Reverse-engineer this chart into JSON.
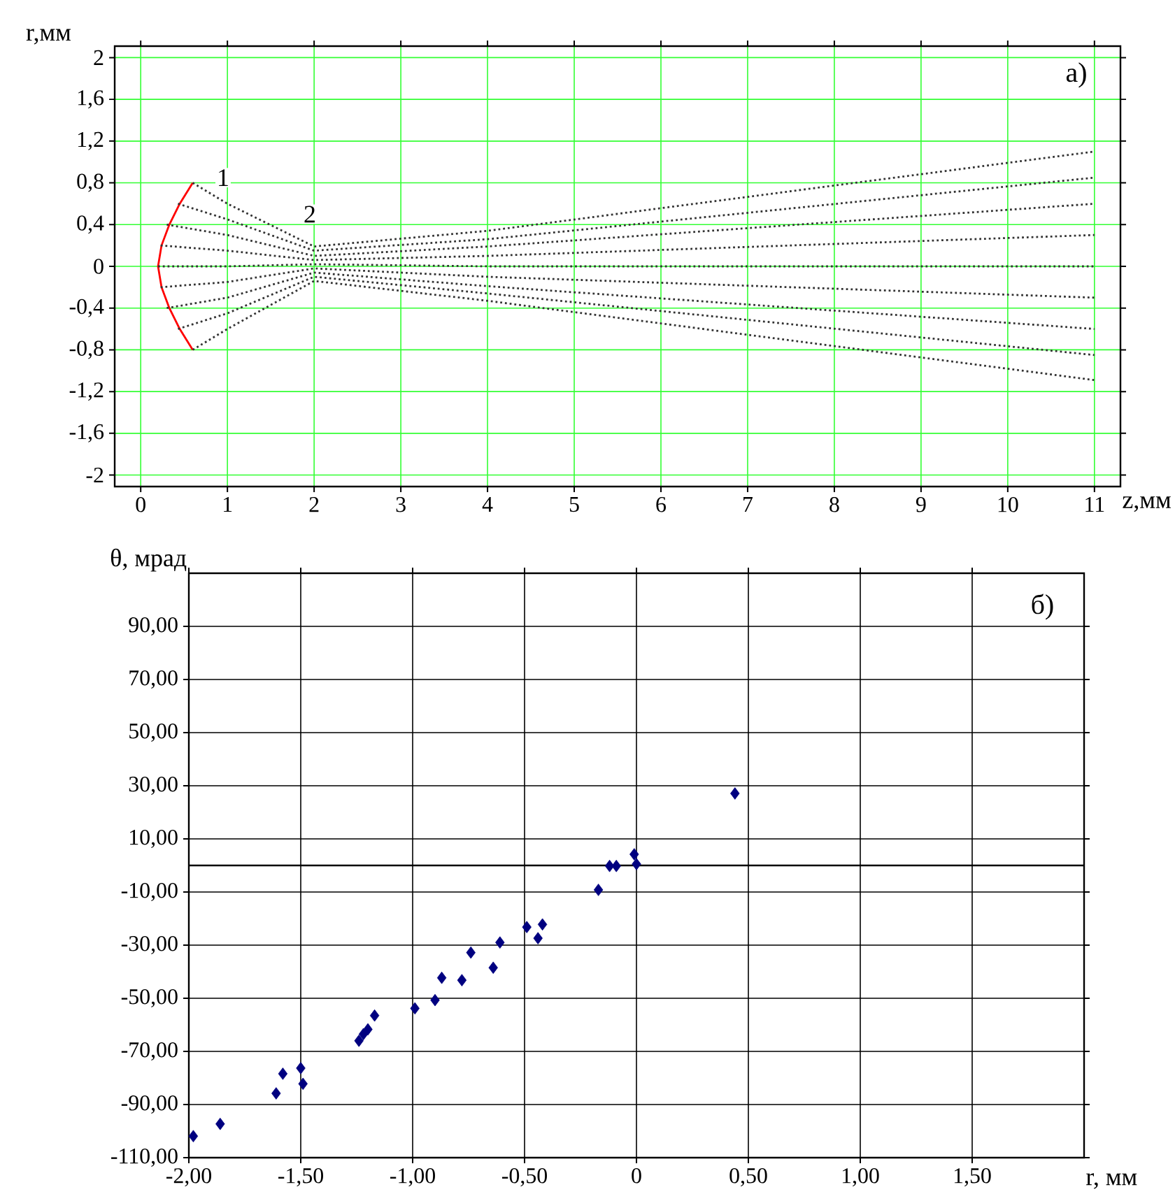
{
  "chart_data": [
    {
      "type": "line",
      "ylabel": "r,мм",
      "xlabel": "z,мм",
      "xlim": [
        -0.3,
        11.3
      ],
      "ylim": [
        -2.11,
        2.11
      ],
      "xticks": [
        0,
        1,
        2,
        3,
        4,
        5,
        6,
        7,
        8,
        9,
        10,
        11
      ],
      "yticks": [
        -2,
        {
          "value": -1.6,
          "label": "-1,6"
        },
        {
          "value": -1.2,
          "label": "-1,2"
        },
        {
          "value": -0.8,
          "label": "-0,8"
        },
        {
          "value": -0.4,
          "label": "-0,4"
        },
        0,
        {
          "value": 0.4,
          "label": "0,4"
        },
        {
          "value": 0.8,
          "label": "0,8"
        },
        {
          "value": 1.2,
          "label": "1,2"
        },
        {
          "value": 1.6,
          "label": "1,6"
        },
        2
      ],
      "grid": true,
      "annotations": [
        {
          "text": "1",
          "x": 0.95,
          "y": 0.85
        },
        {
          "text": "2",
          "x": 1.95,
          "y": 0.5
        },
        "а)"
      ],
      "series": [
        {
          "color": "#ff0000",
          "line_style": "solid",
          "x": [
            0.6,
            0.45,
            0.33,
            0.24,
            0.2,
            0.24,
            0.33,
            0.45,
            0.6
          ],
          "values": [
            0.8,
            0.6,
            0.4,
            0.2,
            0,
            -0.2,
            -0.4,
            -0.6,
            -0.8
          ]
        },
        {
          "color": "#333333",
          "line_style": "dotted",
          "x": [
            0.6,
            1,
            2,
            4,
            11
          ],
          "values": [
            0.8,
            0.6,
            0.19,
            0.34,
            1.1
          ]
        },
        {
          "color": "#333333",
          "line_style": "dotted",
          "x": [
            0.43,
            1,
            2,
            4,
            11
          ],
          "values": [
            0.6,
            0.45,
            0.15,
            0.26,
            0.85
          ]
        },
        {
          "color": "#333333",
          "line_style": "dotted",
          "x": [
            0.3,
            1,
            2,
            4,
            11
          ],
          "values": [
            0.4,
            0.3,
            0.1,
            0.19,
            0.6
          ]
        },
        {
          "color": "#333333",
          "line_style": "dotted",
          "x": [
            0.23,
            1,
            2,
            4,
            11
          ],
          "values": [
            0.2,
            0.15,
            0.06,
            0.1,
            0.3
          ]
        },
        {
          "color": "#333333",
          "line_style": "dotted",
          "x": [
            0.2,
            1,
            2,
            4,
            11
          ],
          "values": [
            0,
            0,
            0.02,
            0,
            0
          ]
        },
        {
          "color": "#333333",
          "line_style": "dotted",
          "x": [
            0.23,
            1,
            2,
            4,
            11
          ],
          "values": [
            -0.2,
            -0.15,
            -0.02,
            -0.1,
            -0.3
          ]
        },
        {
          "color": "#333333",
          "line_style": "dotted",
          "x": [
            0.3,
            1,
            2,
            4,
            11
          ],
          "values": [
            -0.4,
            -0.3,
            -0.06,
            -0.19,
            -0.6
          ]
        },
        {
          "color": "#333333",
          "line_style": "dotted",
          "x": [
            0.43,
            1,
            2,
            4,
            11
          ],
          "values": [
            -0.6,
            -0.45,
            -0.1,
            -0.26,
            -0.85
          ]
        },
        {
          "color": "#333333",
          "line_style": "dotted",
          "x": [
            0.6,
            1,
            2,
            4,
            11
          ],
          "values": [
            -0.8,
            -0.6,
            -0.14,
            -0.33,
            -1.09
          ]
        }
      ]
    },
    {
      "type": "scatter",
      "ylabel": "θ, мрад",
      "xlabel": "r, мм",
      "xlim": [
        -2,
        2
      ],
      "ylim": [
        -110,
        110
      ],
      "xticks": [
        {
          "value": -2,
          "label": "-2,00"
        },
        {
          "value": -1.5,
          "label": "-1,50"
        },
        {
          "value": -1,
          "label": "-1,00"
        },
        {
          "value": -0.5,
          "label": "-0,50"
        },
        0,
        {
          "value": 0.5,
          "label": "0,50"
        },
        {
          "value": 1,
          "label": "1,00"
        },
        {
          "value": 1.5,
          "label": "1,50"
        }
      ],
      "yticks": [
        {
          "value": -110,
          "label": "-110,00"
        },
        {
          "value": -90,
          "label": "-90,00"
        },
        {
          "value": -70,
          "label": "-70,00"
        },
        {
          "value": -50,
          "label": "-50,00"
        },
        {
          "value": -30,
          "label": "-30,00"
        },
        {
          "value": -10,
          "label": "-10,00"
        },
        {
          "value": 10,
          "label": "10,00"
        },
        {
          "value": 30,
          "label": "30,00"
        },
        {
          "value": 50,
          "label": "50,00"
        },
        {
          "value": 70,
          "label": "70,00"
        },
        {
          "value": 90,
          "label": "90,00"
        }
      ],
      "grid": true,
      "marker": "diamond",
      "ref_lines": [
        {
          "axis": "y",
          "value": 0
        }
      ],
      "annotations": [
        "б)"
      ],
      "series": [
        {
          "color": "#000080",
          "x": [
            -1.98,
            -1.86,
            -1.61,
            -1.58,
            -1.5,
            -1.49,
            -1.24,
            -1.22,
            -1.2,
            -1.17,
            -0.99,
            -0.9,
            -0.87,
            -0.78,
            -0.74,
            -0.64,
            -0.61,
            -0.49,
            -0.44,
            -0.42,
            -0.17,
            -0.12,
            -0.09,
            -0.01,
            0,
            0.44
          ],
          "values": [
            -101.9,
            -97.3,
            -85.8,
            -78.4,
            -76.3,
            -82.2,
            -66,
            -63.5,
            -61.7,
            -56.5,
            -53.8,
            -50.7,
            -42.3,
            -43.2,
            -32.8,
            -38.5,
            -29,
            -23.2,
            -27.4,
            -22.2,
            -9.2,
            -0.2,
            -0.2,
            4.2,
            0.5,
            27.1
          ]
        }
      ]
    }
  ]
}
